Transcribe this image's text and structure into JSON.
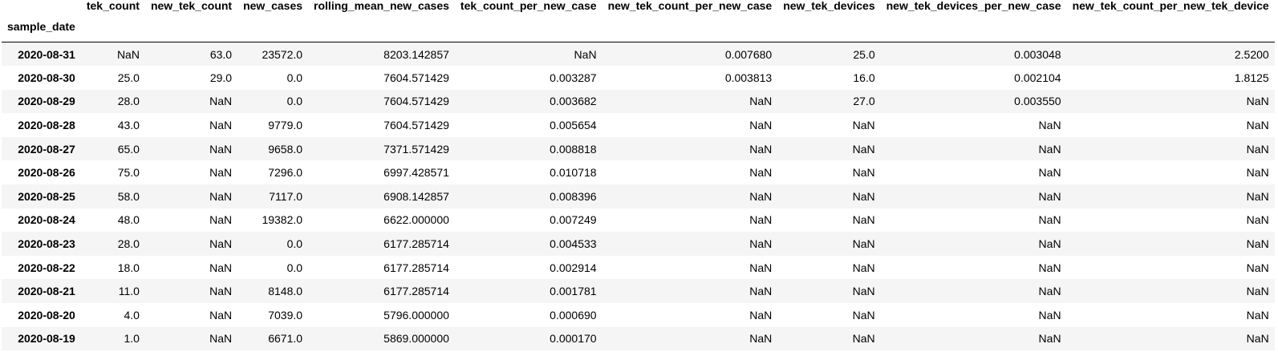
{
  "table": {
    "index_name": "sample_date",
    "columns": [
      "tek_count",
      "new_tek_count",
      "new_cases",
      "rolling_mean_new_cases",
      "tek_count_per_new_case",
      "new_tek_count_per_new_case",
      "new_tek_devices",
      "new_tek_devices_per_new_case",
      "new_tek_count_per_new_tek_device"
    ],
    "rows": [
      {
        "index": "2020-08-31",
        "cells": [
          "NaN",
          "63.0",
          "23572.0",
          "8203.142857",
          "NaN",
          "0.007680",
          "25.0",
          "0.003048",
          "2.5200"
        ]
      },
      {
        "index": "2020-08-30",
        "cells": [
          "25.0",
          "29.0",
          "0.0",
          "7604.571429",
          "0.003287",
          "0.003813",
          "16.0",
          "0.002104",
          "1.8125"
        ]
      },
      {
        "index": "2020-08-29",
        "cells": [
          "28.0",
          "NaN",
          "0.0",
          "7604.571429",
          "0.003682",
          "NaN",
          "27.0",
          "0.003550",
          "NaN"
        ]
      },
      {
        "index": "2020-08-28",
        "cells": [
          "43.0",
          "NaN",
          "9779.0",
          "7604.571429",
          "0.005654",
          "NaN",
          "NaN",
          "NaN",
          "NaN"
        ]
      },
      {
        "index": "2020-08-27",
        "cells": [
          "65.0",
          "NaN",
          "9658.0",
          "7371.571429",
          "0.008818",
          "NaN",
          "NaN",
          "NaN",
          "NaN"
        ]
      },
      {
        "index": "2020-08-26",
        "cells": [
          "75.0",
          "NaN",
          "7296.0",
          "6997.428571",
          "0.010718",
          "NaN",
          "NaN",
          "NaN",
          "NaN"
        ]
      },
      {
        "index": "2020-08-25",
        "cells": [
          "58.0",
          "NaN",
          "7117.0",
          "6908.142857",
          "0.008396",
          "NaN",
          "NaN",
          "NaN",
          "NaN"
        ]
      },
      {
        "index": "2020-08-24",
        "cells": [
          "48.0",
          "NaN",
          "19382.0",
          "6622.000000",
          "0.007249",
          "NaN",
          "NaN",
          "NaN",
          "NaN"
        ]
      },
      {
        "index": "2020-08-23",
        "cells": [
          "28.0",
          "NaN",
          "0.0",
          "6177.285714",
          "0.004533",
          "NaN",
          "NaN",
          "NaN",
          "NaN"
        ]
      },
      {
        "index": "2020-08-22",
        "cells": [
          "18.0",
          "NaN",
          "0.0",
          "6177.285714",
          "0.002914",
          "NaN",
          "NaN",
          "NaN",
          "NaN"
        ]
      },
      {
        "index": "2020-08-21",
        "cells": [
          "11.0",
          "NaN",
          "8148.0",
          "6177.285714",
          "0.001781",
          "NaN",
          "NaN",
          "NaN",
          "NaN"
        ]
      },
      {
        "index": "2020-08-20",
        "cells": [
          "4.0",
          "NaN",
          "7039.0",
          "5796.000000",
          "0.000690",
          "NaN",
          "NaN",
          "NaN",
          "NaN"
        ]
      },
      {
        "index": "2020-08-19",
        "cells": [
          "1.0",
          "NaN",
          "6671.0",
          "5869.000000",
          "0.000170",
          "NaN",
          "NaN",
          "NaN",
          "NaN"
        ]
      }
    ]
  }
}
